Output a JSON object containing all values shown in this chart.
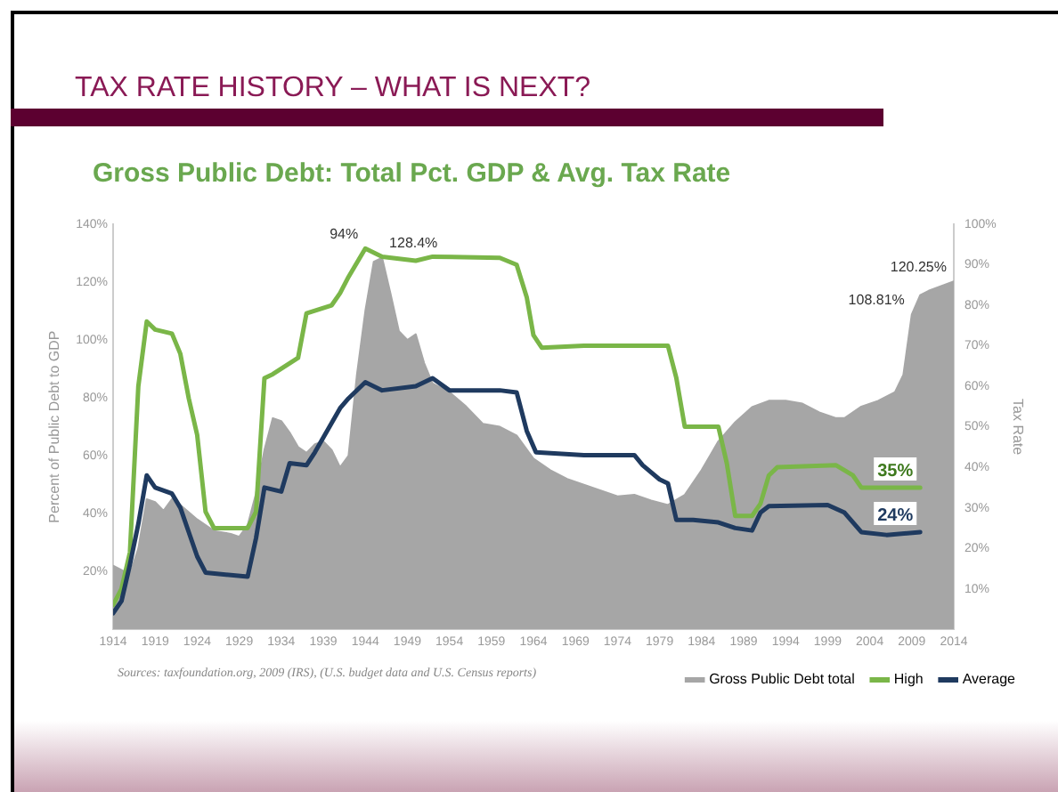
{
  "chart_data": {
    "type": "line",
    "title": "TAX RATE HISTORY – WHAT IS NEXT?",
    "subtitle": "Gross Public Debt: Total Pct. GDP & Avg. Tax Rate",
    "ylabel": "Percent of Public Debt to GDP",
    "y2label": "Tax Rate",
    "annotations": [
      "Sources: taxfoundation.org, 2009 (IRS), (U.S. budget data and U.S. Census reports)"
    ],
    "xlim": [
      1914,
      2014
    ],
    "xticks": [
      1914,
      1919,
      1924,
      1929,
      1934,
      1939,
      1944,
      1949,
      1954,
      1959,
      1964,
      1969,
      1974,
      1979,
      1984,
      1989,
      1994,
      1999,
      2004,
      2009,
      2014
    ],
    "ylim": [
      0,
      140
    ],
    "yticks": [
      {
        "value": 20,
        "label": "20%"
      },
      {
        "value": 40,
        "label": "40%"
      },
      {
        "value": 60,
        "label": "60%"
      },
      {
        "value": 80,
        "label": "80%"
      },
      {
        "value": 100,
        "label": "100%"
      },
      {
        "value": 120,
        "label": "120%"
      },
      {
        "value": 140,
        "label": "140%"
      }
    ],
    "y2lim": [
      0,
      100
    ],
    "y2ticks": [
      {
        "value": 10,
        "label": "10%"
      },
      {
        "value": 20,
        "label": "20%"
      },
      {
        "value": 30,
        "label": "30%"
      },
      {
        "value": 40,
        "label": "40%"
      },
      {
        "value": 50,
        "label": "50%"
      },
      {
        "value": 60,
        "label": "60%"
      },
      {
        "value": 70,
        "label": "70%"
      },
      {
        "value": 80,
        "label": "80%"
      },
      {
        "value": 90,
        "label": "90%"
      },
      {
        "value": 100,
        "label": "100%"
      }
    ],
    "grid": false,
    "legend": "bottom right",
    "marker": "none",
    "line_style": "solid",
    "series": [
      {
        "name": "Gross Public Debt total",
        "type": "area",
        "color": "#a6a6a6",
        "x": [
          1914,
          1916,
          1917,
          1918,
          1919,
          1920,
          1921,
          1922,
          1924,
          1926,
          1928,
          1929,
          1930,
          1931,
          1932,
          1933,
          1934,
          1935,
          1936,
          1937,
          1938,
          1939,
          1940,
          1941,
          1942,
          1943,
          1944,
          1945,
          1946,
          1947,
          1948,
          1949,
          1950,
          1951,
          1952,
          1954,
          1956,
          1958,
          1960,
          1962,
          1964,
          1966,
          1968,
          1970,
          1972,
          1974,
          1976,
          1978,
          1980,
          1982,
          1984,
          1986,
          1988,
          1990,
          1992,
          1994,
          1996,
          1998,
          2000,
          2001,
          2003,
          2005,
          2007,
          2008,
          2009,
          2010,
          2011,
          2014
        ],
        "values": [
          22,
          19,
          28,
          45,
          44,
          41,
          45,
          43,
          38,
          34,
          33,
          32,
          36,
          47,
          62,
          73,
          72,
          68,
          63,
          61,
          64,
          65,
          62,
          56,
          60,
          88,
          110,
          127,
          128.4,
          116,
          103,
          100,
          102,
          92,
          85,
          82,
          77,
          71,
          70,
          67,
          59,
          55,
          52,
          50,
          48,
          46,
          46.5,
          44.5,
          43,
          46.5,
          55,
          65,
          71.6,
          76.8,
          79,
          79,
          78,
          75,
          73,
          73,
          77,
          79,
          82,
          88,
          108.81,
          115.5,
          117,
          120.25
        ],
        "value_labels": [
          null,
          null,
          null,
          null,
          null,
          null,
          null,
          null,
          null,
          null,
          null,
          null,
          null,
          null,
          null,
          null,
          null,
          null,
          null,
          null,
          null,
          null,
          null,
          null,
          null,
          null,
          null,
          null,
          "128.4%",
          null,
          null,
          null,
          null,
          null,
          null,
          null,
          null,
          null,
          null,
          null,
          null,
          null,
          null,
          null,
          null,
          null,
          null,
          null,
          null,
          null,
          null,
          null,
          null,
          null,
          null,
          null,
          null,
          null,
          null,
          null,
          null,
          null,
          null,
          null,
          "108.81%",
          null,
          null,
          "120.25%"
        ]
      },
      {
        "name": "High",
        "type": "line",
        "axis": "y2",
        "color": "#7ab648",
        "x": [
          1914,
          1915,
          1916,
          1917,
          1918,
          1919,
          1921,
          1922,
          1923,
          1924,
          1925,
          1926,
          1930,
          1931,
          1932,
          1933,
          1936,
          1937,
          1940,
          1941,
          1942,
          1944,
          1946,
          1950,
          1952,
          1960,
          1962,
          1963.2,
          1964,
          1965,
          1970,
          1980,
          1981,
          1982,
          1986,
          1987,
          1988,
          1990,
          1991,
          1992,
          1993,
          2000,
          2002,
          2003,
          2010
        ],
        "values": [
          6,
          10,
          19,
          60,
          76,
          74,
          73,
          68,
          57,
          48,
          29,
          25,
          25,
          29,
          62,
          63,
          67,
          78,
          80,
          83,
          87,
          94,
          92,
          91,
          92,
          91.7,
          90,
          82,
          72.6,
          69.5,
          70,
          70,
          62,
          50,
          50,
          41,
          28,
          28,
          31,
          38,
          40,
          40.5,
          38,
          35,
          35
        ],
        "value_labels": [
          null,
          null,
          null,
          null,
          null,
          null,
          null,
          null,
          null,
          null,
          null,
          null,
          null,
          null,
          null,
          null,
          null,
          null,
          null,
          null,
          null,
          "94%",
          null,
          null,
          null,
          null,
          null,
          null,
          null,
          null,
          null,
          null,
          null,
          null,
          null,
          null,
          null,
          null,
          null,
          null,
          null,
          null,
          null,
          null,
          "35%"
        ]
      },
      {
        "name": "Average",
        "type": "line",
        "axis": "y2",
        "color": "#1f3a5f",
        "x": [
          1914,
          1915,
          1916,
          1917,
          1918,
          1919,
          1921,
          1922,
          1923,
          1924,
          1925,
          1930,
          1931,
          1932,
          1934,
          1935,
          1937,
          1938,
          1941,
          1942,
          1944,
          1946,
          1950,
          1952,
          1954,
          1960,
          1962,
          1963.2,
          1964.3,
          1970,
          1976,
          1977,
          1979,
          1980,
          1981,
          1983,
          1986,
          1988,
          1990,
          1991,
          1992,
          1999,
          2001,
          2003,
          2006,
          2010
        ],
        "values": [
          4,
          7,
          16,
          26,
          38,
          35,
          33.5,
          30,
          24,
          18,
          14,
          13,
          22.5,
          35,
          34,
          41,
          40.5,
          43.7,
          54.6,
          57,
          61,
          59,
          60,
          62,
          59,
          59,
          58.5,
          49,
          43.7,
          43,
          43,
          40.5,
          37,
          36,
          27,
          27,
          26.4,
          25,
          24.4,
          28.8,
          30.4,
          30.7,
          28.8,
          24,
          23.3,
          24
        ],
        "value_labels": [
          null,
          null,
          null,
          null,
          null,
          null,
          null,
          null,
          null,
          null,
          null,
          null,
          null,
          null,
          null,
          null,
          null,
          null,
          null,
          null,
          null,
          null,
          null,
          null,
          null,
          null,
          null,
          null,
          null,
          null,
          null,
          null,
          null,
          null,
          null,
          null,
          null,
          null,
          null,
          null,
          null,
          null,
          null,
          null,
          null,
          "24%"
        ]
      }
    ]
  }
}
